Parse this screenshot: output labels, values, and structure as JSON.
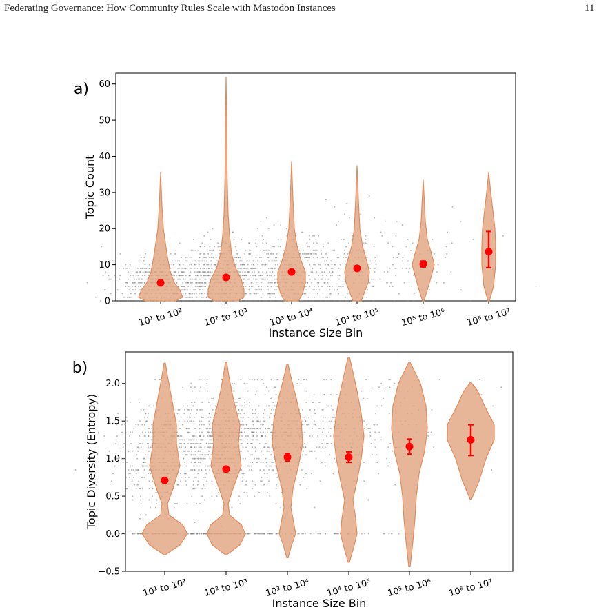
{
  "page": {
    "running_head": "Federating Governance: How Community Rules Scale with Mastodon Instances",
    "page_number": "11"
  },
  "colors": {
    "violin_fill": "#e2a682",
    "violin_stroke": "#e28c5e",
    "mean_marker": "#ff0000",
    "scatter_points": "#808080"
  },
  "chart_data": [
    {
      "type": "violin",
      "panel_label": "a)",
      "xlabel": "Instance Size Bin",
      "ylabel": "Topic Count",
      "categories": [
        "10¹ to 10²",
        "10² to 10³",
        "10³ to 10⁴",
        "10⁴ to 10⁵",
        "10⁵ to 10⁶",
        "10⁶ to 10⁷"
      ],
      "ylim": [
        0,
        63
      ],
      "yticks": [
        0,
        10,
        20,
        30,
        40,
        50,
        60
      ],
      "means": [
        5,
        6.5,
        8,
        9,
        10.2,
        13.6
      ],
      "ci": [
        [
          4.6,
          5.4
        ],
        [
          6.1,
          6.9
        ],
        [
          7.6,
          8.4
        ],
        [
          8.4,
          9.6
        ],
        [
          9.4,
          11.0
        ],
        [
          9.2,
          19.2
        ]
      ],
      "violin_extent": [
        [
          0,
          35.5
        ],
        [
          0,
          62
        ],
        [
          0,
          38.5
        ],
        [
          0,
          37.5
        ],
        [
          0,
          33.5
        ],
        [
          0,
          35.5
        ]
      ]
    },
    {
      "type": "violin",
      "panel_label": "b)",
      "xlabel": "Instance Size Bin",
      "ylabel": "Topic Diversity (Entropy)",
      "categories": [
        "10¹ to 10²",
        "10² to 10³",
        "10³ to 10⁴",
        "10⁴ to 10⁵",
        "10⁵ to 10⁶",
        "10⁶ to 10⁷"
      ],
      "ylim": [
        -0.5,
        2.42
      ],
      "yticks": [
        -0.5,
        0.0,
        0.5,
        1.0,
        1.5,
        2.0
      ],
      "means": [
        0.71,
        0.86,
        1.02,
        1.02,
        1.16,
        1.25
      ],
      "ci": [
        [
          0.68,
          0.74
        ],
        [
          0.83,
          0.89
        ],
        [
          0.97,
          1.07
        ],
        [
          0.95,
          1.09
        ],
        [
          1.06,
          1.26
        ],
        [
          1.04,
          1.45
        ]
      ],
      "violin_extent": [
        [
          -0.28,
          2.27
        ],
        [
          -0.28,
          2.28
        ],
        [
          -0.32,
          2.25
        ],
        [
          -0.38,
          2.35
        ],
        [
          -0.44,
          2.28
        ],
        [
          0.46,
          2.01
        ]
      ]
    }
  ]
}
